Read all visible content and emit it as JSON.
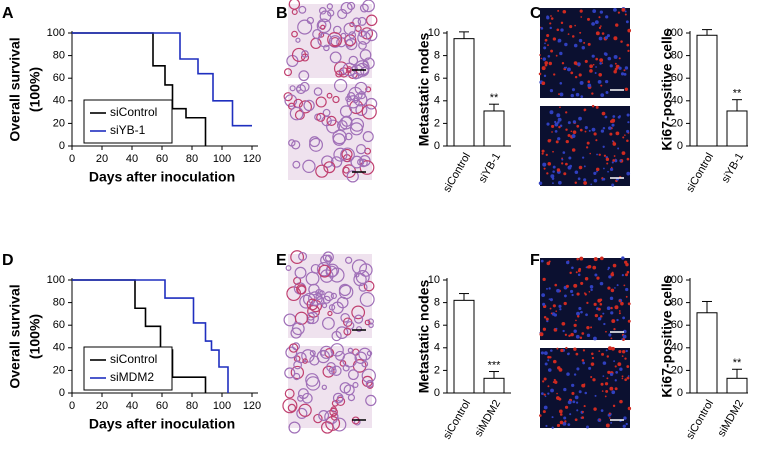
{
  "chart_data": [
    {
      "type": "step",
      "panel": "A",
      "xlabel": "Days after inoculation",
      "ylabel": [
        "Overall survival",
        "(100%)"
      ],
      "xlim": [
        0,
        120
      ],
      "xticks": [
        0,
        20,
        40,
        60,
        80,
        100,
        120
      ],
      "ylim": [
        0,
        100
      ],
      "yticks": [
        0,
        20,
        40,
        60,
        80,
        100
      ],
      "series": [
        {
          "name": "siControl",
          "color": "#000000",
          "x": [
            0,
            54,
            62,
            67,
            76,
            89
          ],
          "values": [
            100,
            71,
            54,
            33,
            25,
            0
          ]
        },
        {
          "name": "siYB-1",
          "color": "#1f2fbf",
          "x": [
            0,
            72,
            84,
            94,
            107,
            120
          ],
          "values": [
            100,
            77,
            64,
            40,
            18,
            18
          ]
        }
      ]
    },
    {
      "type": "bar",
      "panel": "B",
      "ylabel": "Metastatic nodes",
      "image_kind": "histology",
      "categories": [
        "siControl",
        "siYB-1"
      ],
      "values": [
        9.5,
        3.1
      ],
      "errors": [
        0.6,
        0.6
      ],
      "value_annotations": [
        null,
        "**"
      ],
      "ylim": [
        0,
        10
      ],
      "yticks": [
        0,
        2,
        4,
        6,
        8,
        10
      ]
    },
    {
      "type": "bar",
      "panel": "C",
      "ylabel": "Ki67-positive cells",
      "image_kind": "fluorescence",
      "categories": [
        "siControl",
        "siYB-1"
      ],
      "values": [
        98,
        31
      ],
      "errors": [
        5,
        10
      ],
      "value_annotations": [
        null,
        "**"
      ],
      "ylim": [
        0,
        100
      ],
      "yticks": [
        0,
        20,
        40,
        60,
        80,
        100
      ]
    },
    {
      "type": "step",
      "panel": "D",
      "xlabel": "Days after inoculation",
      "ylabel": [
        "Overall survival",
        "(100%)"
      ],
      "xlim": [
        0,
        120
      ],
      "xticks": [
        0,
        20,
        40,
        60,
        80,
        100,
        120
      ],
      "ylim": [
        0,
        100
      ],
      "yticks": [
        0,
        20,
        40,
        60,
        80,
        100
      ],
      "series": [
        {
          "name": "siControl",
          "color": "#000000",
          "x": [
            0,
            42,
            49,
            59,
            67,
            89
          ],
          "values": [
            100,
            75,
            59,
            38,
            14,
            0
          ]
        },
        {
          "name": "siMDM2",
          "color": "#1f2fbf",
          "x": [
            0,
            62,
            81,
            89,
            93,
            98,
            104
          ],
          "values": [
            100,
            84,
            62,
            46,
            38,
            23,
            0
          ]
        }
      ]
    },
    {
      "type": "bar",
      "panel": "E",
      "ylabel": "Metastatic nodes",
      "image_kind": "histology",
      "categories": [
        "siControl",
        "siMDM2"
      ],
      "values": [
        8.2,
        1.3
      ],
      "errors": [
        0.6,
        0.6
      ],
      "value_annotations": [
        null,
        "***"
      ],
      "ylim": [
        0,
        10
      ],
      "yticks": [
        0,
        2,
        4,
        6,
        8,
        10
      ]
    },
    {
      "type": "bar",
      "panel": "F",
      "ylabel": "Ki67-positive cells",
      "image_kind": "fluorescence",
      "categories": [
        "siControl",
        "siMDM2"
      ],
      "values": [
        71,
        13
      ],
      "errors": [
        10,
        8
      ],
      "value_annotations": [
        null,
        "**"
      ],
      "ylim": [
        0,
        100
      ],
      "yticks": [
        0,
        20,
        40,
        60,
        80,
        100
      ]
    }
  ]
}
